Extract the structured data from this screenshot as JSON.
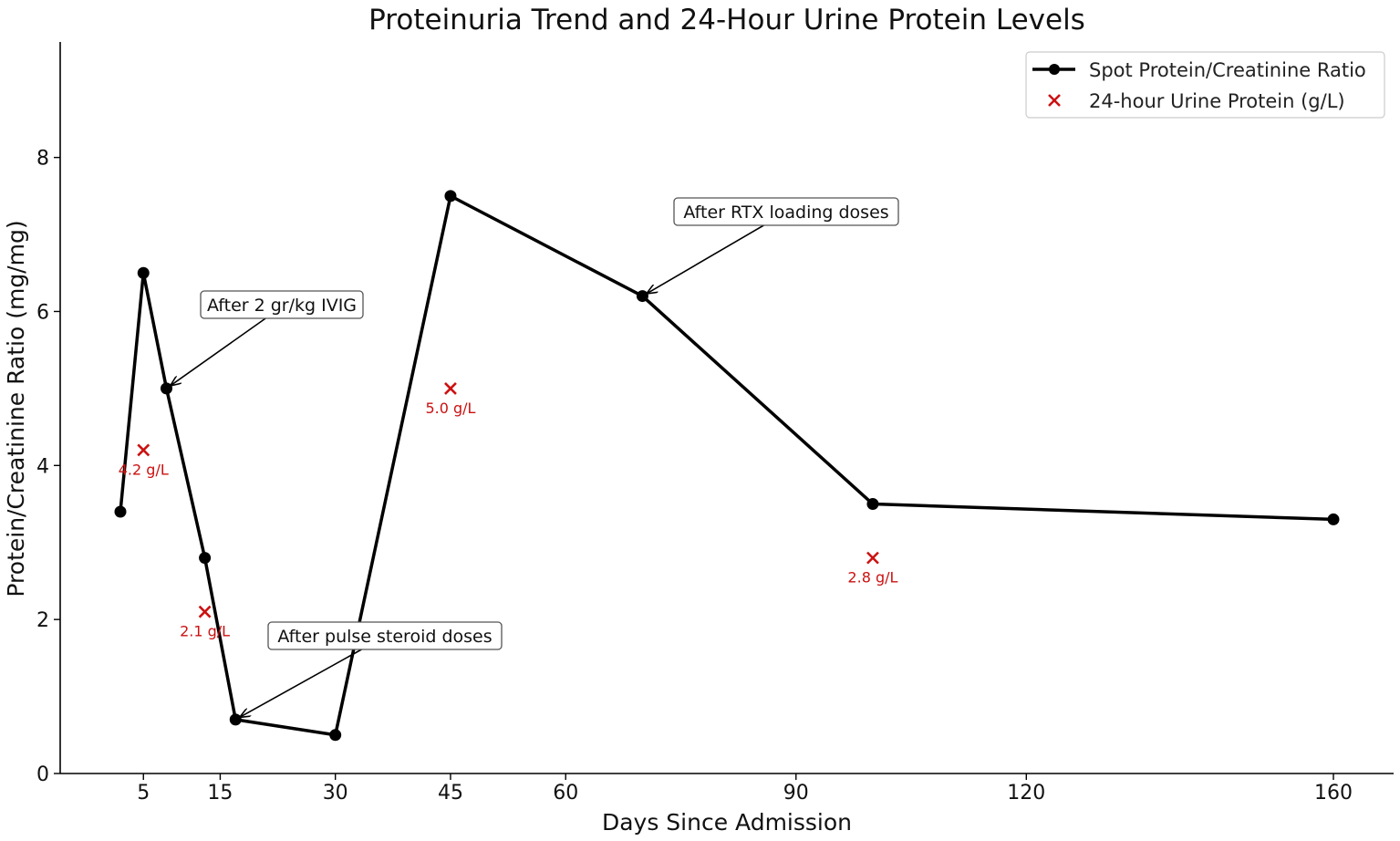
{
  "chart_data": {
    "type": "line",
    "title": "Proteinuria Trend and 24-Hour Urine Protein Levels",
    "xlabel": "Days Since Admission",
    "ylabel": "Protein/Creatinine Ratio (mg/mg)",
    "xlim": [
      -0.5,
      163
    ],
    "ylim": [
      0,
      9.5
    ],
    "xticks": [
      5,
      15,
      30,
      45,
      60,
      90,
      120,
      160
    ],
    "yticks": [
      0,
      2,
      4,
      6,
      8
    ],
    "grid": false,
    "legend_position": "top-right",
    "series": [
      {
        "name": "Spot Protein/Creatinine Ratio",
        "kind": "line-with-markers",
        "color": "#000000",
        "x": [
          2,
          5,
          8,
          13,
          17,
          30,
          45,
          70,
          100,
          160
        ],
        "y": [
          3.4,
          6.5,
          5.0,
          2.8,
          0.7,
          0.5,
          7.5,
          6.2,
          3.5,
          3.3
        ]
      },
      {
        "name": "24-hour Urine Protein (g/L)",
        "kind": "scatter-x",
        "color": "#cc1111",
        "x": [
          5,
          13,
          45,
          100
        ],
        "y": [
          4.2,
          2.1,
          5.0,
          2.8
        ],
        "labels": [
          "4.2 g/L",
          "2.1 g/L",
          "5.0 g/L",
          "2.8 g/L"
        ]
      }
    ],
    "annotations": [
      {
        "text": "After 2 gr/kg IVIG",
        "x": 8,
        "y": 5.0
      },
      {
        "text": "After pulse steroid doses",
        "x": 17,
        "y": 0.7
      },
      {
        "text": "After RTX loading doses",
        "x": 70,
        "y": 6.2
      }
    ]
  }
}
